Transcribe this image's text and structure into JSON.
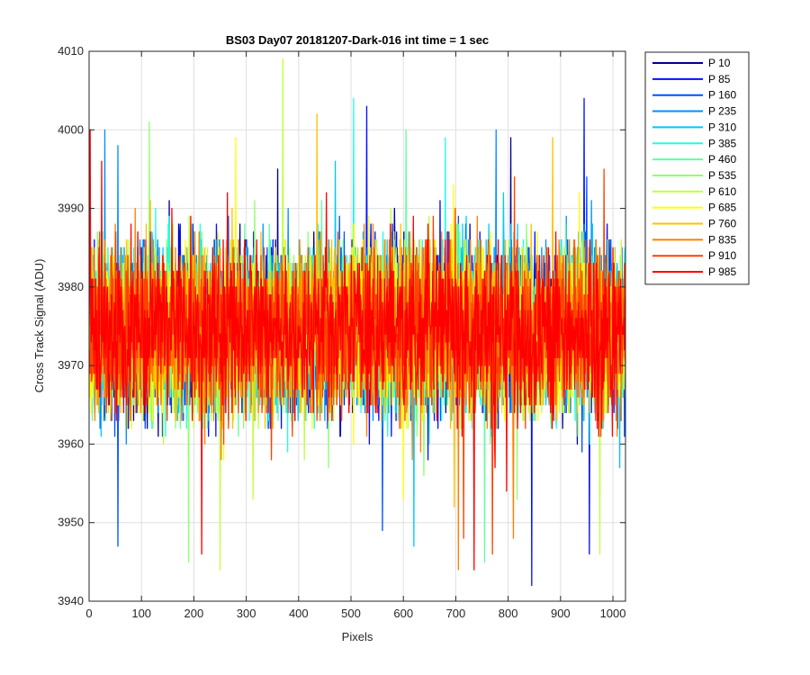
{
  "chart_data": {
    "type": "line",
    "title": "BS03 Day07 20181207-Dark-016 int time = 1 sec",
    "xlabel": "Pixels",
    "ylabel": "Cross Track Signal (ADU)",
    "xlim": [
      0,
      1024
    ],
    "ylim": [
      3940,
      4010
    ],
    "xticks": [
      0,
      100,
      200,
      300,
      400,
      500,
      600,
      700,
      800,
      900,
      1000
    ],
    "yticks": [
      3940,
      3950,
      3960,
      3970,
      3980,
      3990,
      4000,
      4010
    ],
    "grid": true,
    "legend_position": "outside-right",
    "noise": {
      "mean": 3974,
      "spread_low": 3959,
      "spread_high": 3990,
      "min": 3942,
      "max": 4009,
      "step": 1
    },
    "series": [
      {
        "name": "P 10",
        "color": "#00008f",
        "seed": 11,
        "peaks": [
          {
            "x": 360,
            "y": 3995
          },
          {
            "x": 805,
            "y": 3999
          }
        ]
      },
      {
        "name": "P 85",
        "color": "#0010ff",
        "seed": 23,
        "peaks": [
          {
            "x": 530,
            "y": 4003
          },
          {
            "x": 845,
            "y": 3942
          },
          {
            "x": 945,
            "y": 4004
          },
          {
            "x": 955,
            "y": 3946
          }
        ]
      },
      {
        "name": "P 160",
        "color": "#0050ff",
        "seed": 37,
        "peaks": [
          {
            "x": 55,
            "y": 3947
          },
          {
            "x": 560,
            "y": 3949
          }
        ]
      },
      {
        "name": "P 235",
        "color": "#0090ff",
        "seed": 41,
        "peaks": [
          {
            "x": 30,
            "y": 4000
          },
          {
            "x": 55,
            "y": 3998
          }
        ]
      },
      {
        "name": "P 310",
        "color": "#00c8ff",
        "seed": 53,
        "peaks": [
          {
            "x": 470,
            "y": 3996
          },
          {
            "x": 620,
            "y": 3947
          }
        ]
      },
      {
        "name": "P 385",
        "color": "#20ffdf",
        "seed": 61,
        "peaks": [
          {
            "x": 505,
            "y": 4004
          },
          {
            "x": 680,
            "y": 3999
          }
        ]
      },
      {
        "name": "P 460",
        "color": "#60ffa0",
        "seed": 71,
        "peaks": [
          {
            "x": 605,
            "y": 4000
          },
          {
            "x": 755,
            "y": 3945
          }
        ]
      },
      {
        "name": "P 535",
        "color": "#8fff70",
        "seed": 83,
        "peaks": [
          {
            "x": 115,
            "y": 4001
          },
          {
            "x": 190,
            "y": 3945
          }
        ]
      },
      {
        "name": "P 610",
        "color": "#c0ff40",
        "seed": 97,
        "peaks": [
          {
            "x": 370,
            "y": 4009
          },
          {
            "x": 250,
            "y": 3944
          },
          {
            "x": 975,
            "y": 3946
          }
        ]
      },
      {
        "name": "P 685",
        "color": "#ffff00",
        "seed": 101,
        "peaks": [
          {
            "x": 280,
            "y": 3999
          },
          {
            "x": 600,
            "y": 3953
          }
        ]
      },
      {
        "name": "P 760",
        "color": "#ffc000",
        "seed": 113,
        "peaks": [
          {
            "x": 435,
            "y": 4002
          },
          {
            "x": 885,
            "y": 3999
          }
        ]
      },
      {
        "name": "P 835",
        "color": "#ff8000",
        "seed": 127,
        "peaks": [
          {
            "x": 705,
            "y": 3944
          },
          {
            "x": 810,
            "y": 3948
          }
        ]
      },
      {
        "name": "P 910",
        "color": "#ff4000",
        "seed": 131,
        "peaks": [
          {
            "x": 770,
            "y": 3946
          },
          {
            "x": 715,
            "y": 3948
          }
        ]
      },
      {
        "name": "P 985",
        "color": "#ff0000",
        "seed": 139,
        "peaks": [
          {
            "x": 2,
            "y": 4000
          },
          {
            "x": 215,
            "y": 3946
          },
          {
            "x": 735,
            "y": 3944
          }
        ]
      }
    ]
  }
}
